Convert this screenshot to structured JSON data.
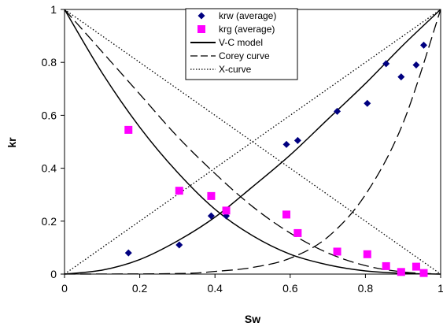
{
  "chart_data": {
    "type": "scatter",
    "title": "",
    "xlabel": "Sw",
    "ylabel": "kr",
    "xlim": [
      0,
      1
    ],
    "ylim": [
      0,
      1
    ],
    "x_ticks": [
      "0",
      "0.2",
      "0.4",
      "0.6",
      "0.8",
      "1"
    ],
    "y_ticks": [
      "0",
      "0.2",
      "0.4",
      "0.6",
      "0.8",
      "1"
    ],
    "grid": false,
    "legend_position": "top-center",
    "series": [
      {
        "name": "krw (average)",
        "kind": "points",
        "marker": "diamond",
        "color": "#000080",
        "points": [
          [
            0.17,
            0.08
          ],
          [
            0.305,
            0.11
          ],
          [
            0.39,
            0.22
          ],
          [
            0.43,
            0.22
          ],
          [
            0.59,
            0.49
          ],
          [
            0.62,
            0.505
          ],
          [
            0.725,
            0.615
          ],
          [
            0.805,
            0.645
          ],
          [
            0.855,
            0.795
          ],
          [
            0.895,
            0.745
          ],
          [
            0.935,
            0.79
          ],
          [
            0.955,
            0.865
          ]
        ]
      },
      {
        "name": "krg (average)",
        "kind": "points",
        "marker": "square",
        "color": "#ff00ff",
        "points": [
          [
            0.17,
            0.545
          ],
          [
            0.305,
            0.315
          ],
          [
            0.39,
            0.295
          ],
          [
            0.43,
            0.24
          ],
          [
            0.59,
            0.225
          ],
          [
            0.62,
            0.155
          ],
          [
            0.725,
            0.085
          ],
          [
            0.805,
            0.075
          ],
          [
            0.855,
            0.03
          ],
          [
            0.895,
            0.008
          ],
          [
            0.935,
            0.028
          ],
          [
            0.955,
            0.004
          ]
        ]
      },
      {
        "name": "V-C model",
        "kind": "line",
        "style": "solid",
        "curves": [
          [
            [
              0,
              0
            ],
            [
              0.1,
              0.015
            ],
            [
              0.2,
              0.055
            ],
            [
              0.3,
              0.125
            ],
            [
              0.4,
              0.215
            ],
            [
              0.5,
              0.33
            ],
            [
              0.6,
              0.45
            ],
            [
              0.7,
              0.585
            ],
            [
              0.8,
              0.72
            ],
            [
              0.9,
              0.865
            ],
            [
              1.0,
              1.0
            ]
          ],
          [
            [
              0,
              1.0
            ],
            [
              0.1,
              0.76
            ],
            [
              0.2,
              0.555
            ],
            [
              0.3,
              0.385
            ],
            [
              0.4,
              0.245
            ],
            [
              0.5,
              0.145
            ],
            [
              0.6,
              0.075
            ],
            [
              0.7,
              0.035
            ],
            [
              0.8,
              0.012
            ],
            [
              0.9,
              0.003
            ],
            [
              1.0,
              0
            ]
          ]
        ]
      },
      {
        "name": "Corey curve",
        "kind": "line",
        "style": "dashed",
        "curves": [
          [
            [
              0,
              0
            ],
            [
              0.3,
              0.002
            ],
            [
              0.4,
              0.01
            ],
            [
              0.5,
              0.025
            ],
            [
              0.6,
              0.06
            ],
            [
              0.7,
              0.14
            ],
            [
              0.8,
              0.3
            ],
            [
              0.9,
              0.57
            ],
            [
              1.0,
              1.0
            ]
          ],
          [
            [
              0,
              1.0
            ],
            [
              0.1,
              0.84
            ],
            [
              0.2,
              0.68
            ],
            [
              0.3,
              0.52
            ],
            [
              0.4,
              0.38
            ],
            [
              0.5,
              0.255
            ],
            [
              0.6,
              0.155
            ],
            [
              0.7,
              0.08
            ],
            [
              0.8,
              0.032
            ],
            [
              0.9,
              0.008
            ],
            [
              1.0,
              0
            ]
          ]
        ]
      },
      {
        "name": "X-curve",
        "kind": "line",
        "style": "dotted",
        "curves": [
          [
            [
              0,
              0
            ],
            [
              1,
              1
            ]
          ],
          [
            [
              0,
              1
            ],
            [
              1,
              0
            ]
          ]
        ]
      }
    ]
  }
}
